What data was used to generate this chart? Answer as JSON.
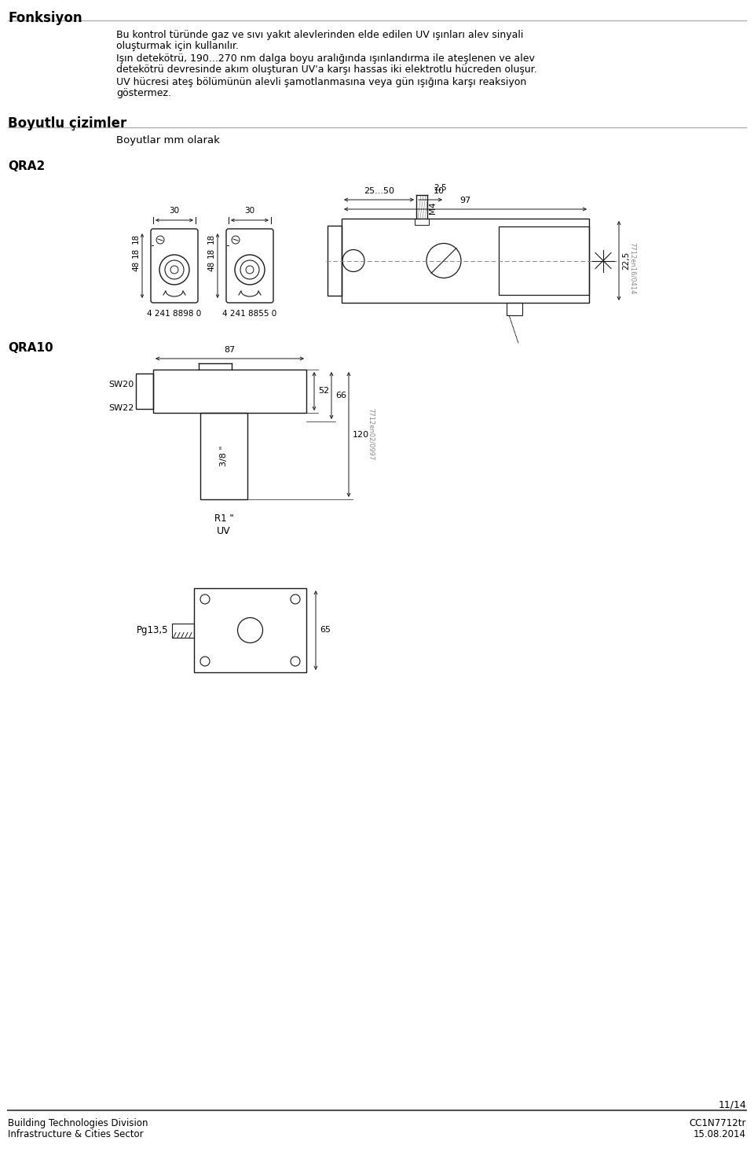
{
  "title": "Fonksiyon",
  "section2_title": "Boyutlu çizimler",
  "section2_sub": "Boyutlar mm olarak",
  "qra2_label": "QRA2",
  "qra10_label": "QRA10",
  "para1_line1": "Bu kontrol türünde gaz ve sıvı yakıt alevlerinden elde edilen UV ışınları alev sinyali",
  "para1_line2": "oluşturmak için kullanılır.",
  "para2_line1": "Işın detekötrü, 190...270 nm dalga boyu aralığında ışınlandırma ile ateşlenen ve alev",
  "para2_line2": "detekötrü devresinde akım oluşturan UV'a karşı hassas iki elektrotlu hücreden oluşur.",
  "para3_line1": "UV hücresi ateş bölümünün alevli şamotlanmasına veya gün ışığına karşı reaksiyon",
  "para3_line2": "göstermez.",
  "label_4241_8898": "4 241 8898 0",
  "label_4241_8855": "4 241 8855 0",
  "footer_left1": "Building Technologies Division",
  "footer_left2": "Infrastructure & Cities Sector",
  "footer_right1": "CC1N7712tr",
  "footer_right2": "15.08.2014",
  "page_num": "11/14",
  "bg_color": "#ffffff",
  "text_color": "#000000",
  "line_color": "#1a1a1a",
  "gray_color": "#888888"
}
